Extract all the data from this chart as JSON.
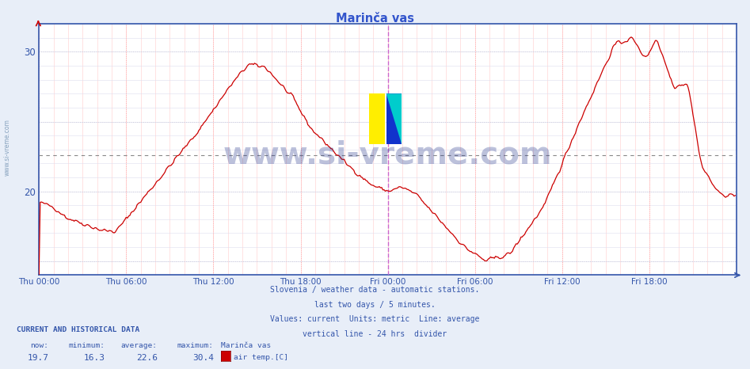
{
  "title": "Marinča vas",
  "bg_color": "#e8eef8",
  "plot_bg_color": "#ffffff",
  "line_color": "#cc0000",
  "avg_line_color": "#888888",
  "avg_line_style": "dotted",
  "vline_color": "#cc66cc",
  "axis_color": "#3355aa",
  "text_color": "#3355aa",
  "title_color": "#3355cc",
  "xlim": [
    0,
    576
  ],
  "ylim": [
    14,
    32
  ],
  "xtick_positions": [
    0,
    72,
    144,
    216,
    288,
    360,
    432,
    504
  ],
  "xtick_labels": [
    "Thu 00:00",
    "Thu 06:00",
    "Thu 12:00",
    "Thu 18:00",
    "Fri 00:00",
    "Fri 06:00",
    "Fri 12:00",
    "Fri 18:00"
  ],
  "vline_x": 288,
  "avg_value": 22.6,
  "now": 19.7,
  "minimum": 16.3,
  "average": 22.6,
  "maximum": 30.4,
  "station": "Marinča vas",
  "footer_lines": [
    "Slovenia / weather data - automatic stations.",
    "last two days / 5 minutes.",
    "Values: current  Units: metric  Line: average",
    "vertical line - 24 hrs  divider"
  ],
  "watermark_text": "www.si-vreme.com",
  "watermark_color": "#223388",
  "watermark_alpha": 0.3,
  "sidebar_text": "www.si-vreme.com",
  "sidebar_color": "#6688aa"
}
